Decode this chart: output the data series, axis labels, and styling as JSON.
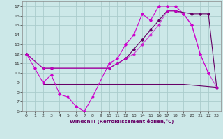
{
  "background_color": "#cce8e8",
  "grid_color": "#aacccc",
  "line_color_magenta": "#cc00cc",
  "line_color_purple": "#660066",
  "xlabel": "Windchill (Refroidissement éolien,°C)",
  "xlim": [
    -0.5,
    23.5
  ],
  "ylim": [
    6,
    17.5
  ],
  "yticks": [
    6,
    7,
    8,
    9,
    10,
    11,
    12,
    13,
    14,
    15,
    16,
    17
  ],
  "xticks": [
    0,
    1,
    2,
    3,
    4,
    5,
    6,
    7,
    8,
    9,
    10,
    11,
    12,
    13,
    14,
    15,
    16,
    17,
    18,
    19,
    20,
    21,
    22,
    23
  ],
  "line1_x": [
    0,
    1,
    2,
    3,
    4,
    5,
    6,
    7,
    8,
    10,
    11,
    12,
    13,
    14,
    15,
    16,
    17,
    18,
    19,
    20,
    21,
    22
  ],
  "line1_y": [
    12,
    10.5,
    9.0,
    9.8,
    7.8,
    7.5,
    6.5,
    6.0,
    7.5,
    11.0,
    11.5,
    13.0,
    14.0,
    16.2,
    15.5,
    17.0,
    17.0,
    17.0,
    16.2,
    15.0,
    12.0,
    10.0
  ],
  "line2_x": [
    0,
    2,
    3,
    10,
    11,
    12,
    13,
    14,
    15,
    16,
    17,
    18,
    20,
    21,
    22,
    23
  ],
  "line2_y": [
    12,
    10.5,
    10.5,
    10.5,
    11.0,
    11.5,
    12.5,
    13.5,
    14.5,
    15.5,
    16.5,
    16.5,
    16.2,
    16.2,
    16.2,
    8.5
  ],
  "line3_x": [
    2,
    10,
    19,
    23
  ],
  "line3_y": [
    8.8,
    8.8,
    8.8,
    8.5
  ],
  "line4_x": [
    0,
    2,
    3,
    10,
    11,
    12,
    13,
    14,
    15,
    16,
    17,
    18,
    19,
    20,
    21,
    22,
    23
  ],
  "line4_y": [
    12,
    10.5,
    10.5,
    10.5,
    11.0,
    11.5,
    12.0,
    13.0,
    14.0,
    15.0,
    16.5,
    16.5,
    16.2,
    15.0,
    12.0,
    10.0,
    8.5
  ]
}
